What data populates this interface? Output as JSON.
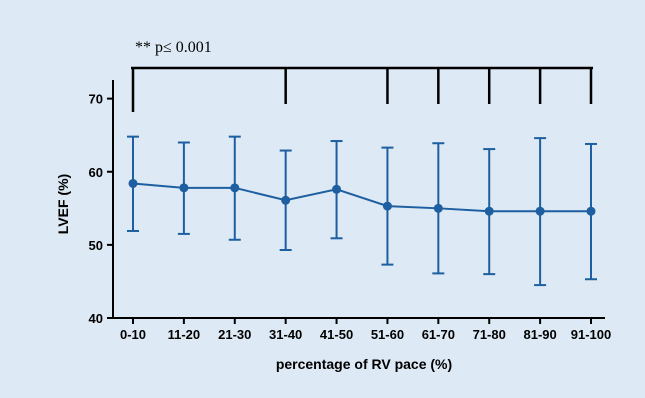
{
  "chart_data": {
    "type": "line",
    "categories": [
      "0-10",
      "11-20",
      "21-30",
      "31-40",
      "41-50",
      "51-60",
      "61-70",
      "71-80",
      "81-90",
      "91-100"
    ],
    "series": [
      {
        "values": [
          58.4,
          57.8,
          57.8,
          56.1,
          57.6,
          55.3,
          55.0,
          54.6,
          54.6,
          54.6
        ],
        "error_upper": [
          64.8,
          64.0,
          64.8,
          62.9,
          64.2,
          63.3,
          63.9,
          63.1,
          64.6,
          63.8
        ],
        "error_lower": [
          51.9,
          51.5,
          50.7,
          49.3,
          50.9,
          47.3,
          46.1,
          46.0,
          44.5,
          45.3
        ],
        "color": "#1d5fa0"
      }
    ],
    "ylabel": "LVEF (%)",
    "xlabel": "percentage of RV pace (%)",
    "ylim": [
      40,
      72
    ],
    "yticks": [
      40,
      50,
      60,
      70
    ],
    "grid": false,
    "annotation": {
      "text": "** p≤ 0.001",
      "bracket_categories": [
        "0-10",
        "31-40",
        "51-60",
        "61-70",
        "71-80",
        "81-90",
        "91-100"
      ]
    }
  }
}
